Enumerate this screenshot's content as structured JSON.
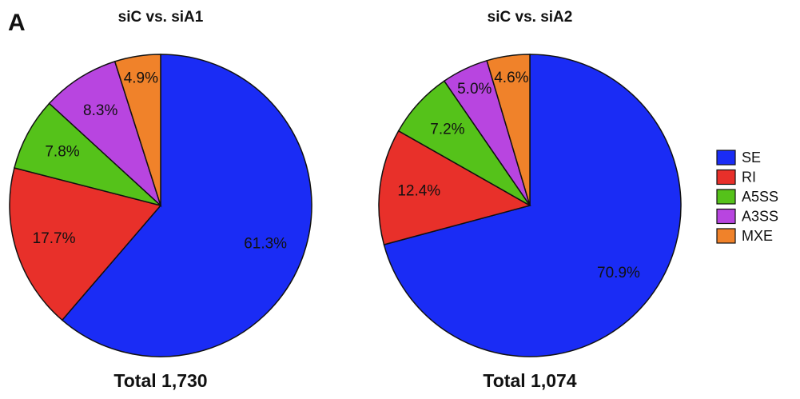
{
  "panel_label": "A",
  "chart_data": [
    {
      "type": "pie",
      "title": "siC vs. siA1",
      "subtitle": "Total 1,730",
      "categories": [
        "SE",
        "RI",
        "A5SS",
        "A3SS",
        "MXE"
      ],
      "values": [
        61.3,
        17.7,
        7.8,
        8.3,
        4.9
      ],
      "value_labels": [
        "61.3%",
        "17.7%",
        "7.8%",
        "8.3%",
        "4.9%"
      ],
      "colors": [
        "#1a2cf5",
        "#e8302a",
        "#55c21a",
        "#b845e0",
        "#f0822a"
      ],
      "legend": "right"
    },
    {
      "type": "pie",
      "title": "siC vs. siA2",
      "subtitle": "Total 1,074",
      "categories": [
        "SE",
        "RI",
        "A5SS",
        "A3SS",
        "MXE"
      ],
      "values": [
        70.9,
        12.4,
        7.2,
        5.0,
        4.6
      ],
      "value_labels": [
        "70.9%",
        "12.4%",
        "7.2%",
        "5.0%",
        "4.6%"
      ],
      "colors": [
        "#1a2cf5",
        "#e8302a",
        "#55c21a",
        "#b845e0",
        "#f0822a"
      ]
    }
  ]
}
